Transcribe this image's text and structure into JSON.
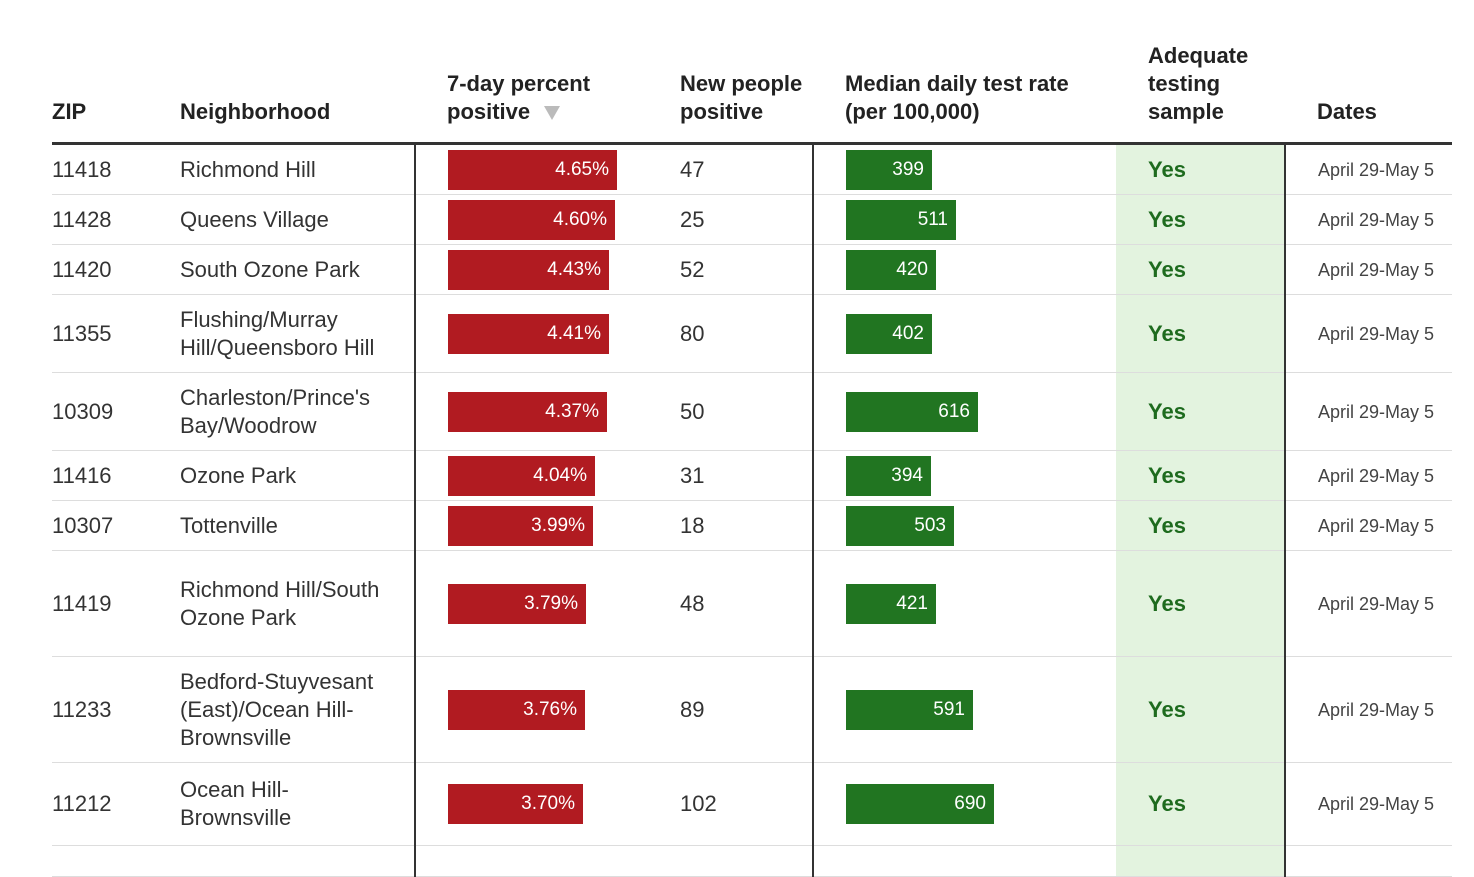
{
  "columns": {
    "zip": "ZIP",
    "neighborhood": "Neighborhood",
    "pct": "7-day percent positive",
    "new": "New people positive",
    "rate": "Median daily test rate (per 100,000)",
    "adequate": "Adequate testing sample",
    "dates": "Dates",
    "sort_icon": "triangle-down"
  },
  "colors": {
    "pct_bar": "#b11b21",
    "rate_bar": "#217521",
    "adequate_bg": "#e3f3df",
    "adequate_text": "#1e6b1e"
  },
  "rows": [
    {
      "zip": "11418",
      "neighborhood": "Richmond Hill",
      "pct": "4.65%",
      "pct_value": 4.65,
      "new": "47",
      "rate": "399",
      "rate_value": 399,
      "adequate": "Yes",
      "dates": "April 29-May 5"
    },
    {
      "zip": "11428",
      "neighborhood": "Queens Village",
      "pct": "4.60%",
      "pct_value": 4.6,
      "new": "25",
      "rate": "511",
      "rate_value": 511,
      "adequate": "Yes",
      "dates": "April 29-May 5"
    },
    {
      "zip": "11420",
      "neighborhood": "South Ozone Park",
      "pct": "4.43%",
      "pct_value": 4.43,
      "new": "52",
      "rate": "420",
      "rate_value": 420,
      "adequate": "Yes",
      "dates": "April 29-May 5"
    },
    {
      "zip": "11355",
      "neighborhood": "Flushing/Murray Hill/Queensboro Hill",
      "pct": "4.41%",
      "pct_value": 4.41,
      "new": "80",
      "rate": "402",
      "rate_value": 402,
      "adequate": "Yes",
      "dates": "April 29-May 5"
    },
    {
      "zip": "10309",
      "neighborhood": "Charleston/Prince's Bay/Woodrow",
      "pct": "4.37%",
      "pct_value": 4.37,
      "new": "50",
      "rate": "616",
      "rate_value": 616,
      "adequate": "Yes",
      "dates": "April 29-May 5"
    },
    {
      "zip": "11416",
      "neighborhood": "Ozone Park",
      "pct": "4.04%",
      "pct_value": 4.04,
      "new": "31",
      "rate": "394",
      "rate_value": 394,
      "adequate": "Yes",
      "dates": "April 29-May 5"
    },
    {
      "zip": "10307",
      "neighborhood": "Tottenville",
      "pct": "3.99%",
      "pct_value": 3.99,
      "new": "18",
      "rate": "503",
      "rate_value": 503,
      "adequate": "Yes",
      "dates": "April 29-May 5"
    },
    {
      "zip": "11419",
      "neighborhood": "Richmond Hill/South Ozone Park",
      "pct": "3.79%",
      "pct_value": 3.79,
      "new": "48",
      "rate": "421",
      "rate_value": 421,
      "adequate": "Yes",
      "dates": "April 29-May 5"
    },
    {
      "zip": "11233",
      "neighborhood": "Bedford-Stuyvesant (East)/Ocean Hill-Brownsville",
      "pct": "3.76%",
      "pct_value": 3.76,
      "new": "89",
      "rate": "591",
      "rate_value": 591,
      "adequate": "Yes",
      "dates": "April 29-May 5"
    },
    {
      "zip": "11212",
      "neighborhood": "Ocean Hill-Brownsville",
      "pct": "3.70%",
      "pct_value": 3.7,
      "new": "102",
      "rate": "690",
      "rate_value": 690,
      "adequate": "Yes",
      "dates": "April 29-May 5"
    }
  ]
}
